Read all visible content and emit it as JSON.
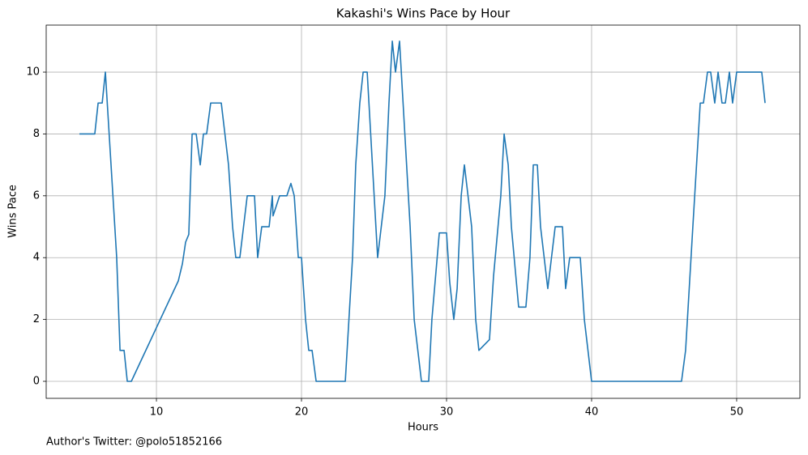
{
  "chart_data": {
    "type": "line",
    "title": "Kakashi's Wins Pace by Hour",
    "x_label": "Hours",
    "y_label": "Wins Pace",
    "footnote": "Author's Twitter: @polo51852166",
    "x": [
      4.69,
      5.75,
      5.98,
      6.26,
      6.48,
      7.26,
      7.49,
      7.77,
      7.99,
      8.27,
      11.51,
      11.79,
      12.01,
      12.23,
      12.46,
      12.74,
      13.02,
      13.24,
      13.46,
      13.74,
      14.47,
      14.97,
      15.25,
      15.47,
      15.75,
      16.26,
      16.76,
      16.98,
      17.26,
      17.77,
      17.99,
      18.04,
      18.49,
      18.99,
      19.27,
      19.5,
      19.78,
      20,
      20.28,
      20.5,
      20.73,
      21.01,
      23.02,
      23.52,
      23.74,
      24.02,
      24.25,
      24.53,
      25.25,
      25.75,
      26.03,
      26.26,
      26.48,
      26.76,
      27.49,
      27.77,
      28.27,
      28.77,
      28.99,
      29.5,
      30,
      30.22,
      30.5,
      30.73,
      31.01,
      31.23,
      31.73,
      32.01,
      32.23,
      32.96,
      33.24,
      33.74,
      33.97,
      34.25,
      34.47,
      34.97,
      35.47,
      35.75,
      35.98,
      36.26,
      36.48,
      36.98,
      37.49,
      37.99,
      38.21,
      38.49,
      39.22,
      39.5,
      40,
      46.2,
      46.48,
      46.98,
      47.49,
      47.71,
      47.99,
      48.21,
      48.49,
      48.72,
      48.99,
      49.22,
      49.5,
      49.72,
      50,
      51.73,
      51.96
    ],
    "series": [
      {
        "name": "Wins Pace",
        "color": "#1f77b4",
        "values": [
          8,
          8,
          9,
          9,
          10,
          4,
          1,
          1,
          0,
          0,
          3.25,
          3.8,
          4.5,
          4.75,
          8,
          8,
          7,
          8,
          8,
          9,
          9,
          7,
          5,
          4,
          4,
          6,
          6,
          4,
          5,
          5,
          6,
          5.35,
          6,
          6,
          6.4,
          6,
          4,
          4,
          2,
          1,
          1,
          0,
          0,
          4,
          7,
          9,
          10,
          10,
          4,
          6,
          9,
          11,
          10,
          11,
          5,
          2,
          0,
          0,
          2,
          4.8,
          4.8,
          3.2,
          2,
          3,
          6,
          7,
          5,
          2,
          1,
          1.35,
          3.4,
          6,
          8,
          7,
          5,
          2.4,
          2.4,
          4,
          7,
          7,
          5,
          3,
          5,
          5,
          3,
          4,
          4,
          2,
          0,
          0,
          1,
          5,
          9,
          9,
          10,
          10,
          9,
          10,
          9,
          9,
          10,
          9,
          10,
          10,
          9
        ]
      }
    ],
    "xlim": [
      2.4,
      54.36
    ],
    "ylim": [
      -0.55,
      11.52
    ],
    "xticks": [
      10,
      20,
      30,
      40,
      50
    ],
    "yticks": [
      0,
      2,
      4,
      6,
      8,
      10
    ],
    "grid": true
  }
}
